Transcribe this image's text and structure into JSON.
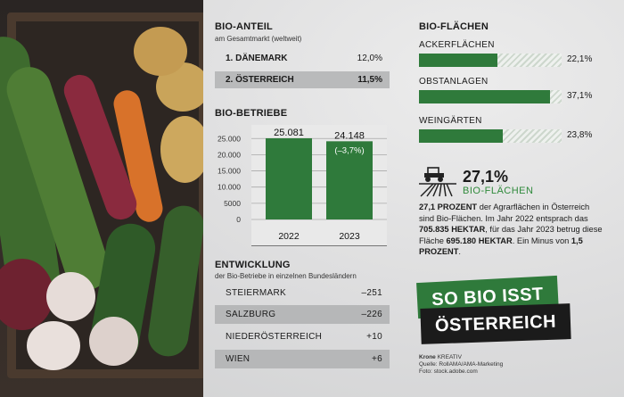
{
  "bio_anteil": {
    "title": "BIO-ANTEIL",
    "subtitle": "am Gesamtmarkt (weltweit)",
    "rows": [
      {
        "label": "1. DÄNEMARK",
        "value": "12,0%"
      },
      {
        "label": "2. ÖSTERREICH",
        "value": "11,5%"
      }
    ]
  },
  "bio_betriebe": {
    "title": "BIO-BETRIEBE",
    "change_label": "(–3,7%)"
  },
  "chart_data": {
    "type": "bar",
    "categories": [
      "2022",
      "2023"
    ],
    "values": [
      25081,
      24148
    ],
    "value_labels": [
      "25.081",
      "24.148"
    ],
    "y_ticks": [
      0,
      5000,
      10000,
      15000,
      20000,
      25000
    ],
    "y_tick_labels": [
      "0",
      "5000",
      "10.000",
      "15.000",
      "20.000",
      "25.000"
    ],
    "ylim": [
      0,
      27000
    ],
    "grid": true,
    "color": "#2f7a3b"
  },
  "entwicklung": {
    "title": "ENTWICKLUNG",
    "subtitle": "der Bio-Betriebe in einzelnen Bundesländern",
    "rows": [
      {
        "label": "STEIERMARK",
        "value": "–251"
      },
      {
        "label": "SALZBURG",
        "value": "–226"
      },
      {
        "label": "NIEDERÖSTERREICH",
        "value": "+10"
      },
      {
        "label": "WIEN",
        "value": "+6"
      }
    ]
  },
  "bio_flaechen": {
    "title": "BIO-FLÄCHEN",
    "items": [
      {
        "label": "ACKERFLÄCHEN",
        "value": "22,1%",
        "share": 0.221
      },
      {
        "label": "OBSTANLAGEN",
        "value": "37,1%",
        "share": 0.371
      },
      {
        "label": "WEINGÄRTEN",
        "value": "23,8%",
        "share": 0.238
      }
    ]
  },
  "stat": {
    "value": "27,1%",
    "label": "BIO-FLÄCHEN",
    "icon": "tractor-field-icon",
    "p1": "27,1 PROZENT",
    "p2": " der Agrarflächen in Österreich sind Bio-Flächen. Im Jahr 2022 entsprach das ",
    "p3": "705.835 HEKTAR",
    "p4": ", für das Jahr 2023 betrug diese Fläche ",
    "p5": "695.180 HEKTAR",
    "p6": ". Ein Minus von ",
    "p7": "1,5 PROZENT",
    "p8": "."
  },
  "badge": {
    "line1": "SO BIO ISST",
    "line2": "ÖSTERREICH"
  },
  "credits": {
    "brand": "Krone",
    "brand_suffix": " KREATIV",
    "source": "Quelle: RollAMA/AMA-Marketing",
    "photo": "Foto: stock.adobe.com"
  }
}
